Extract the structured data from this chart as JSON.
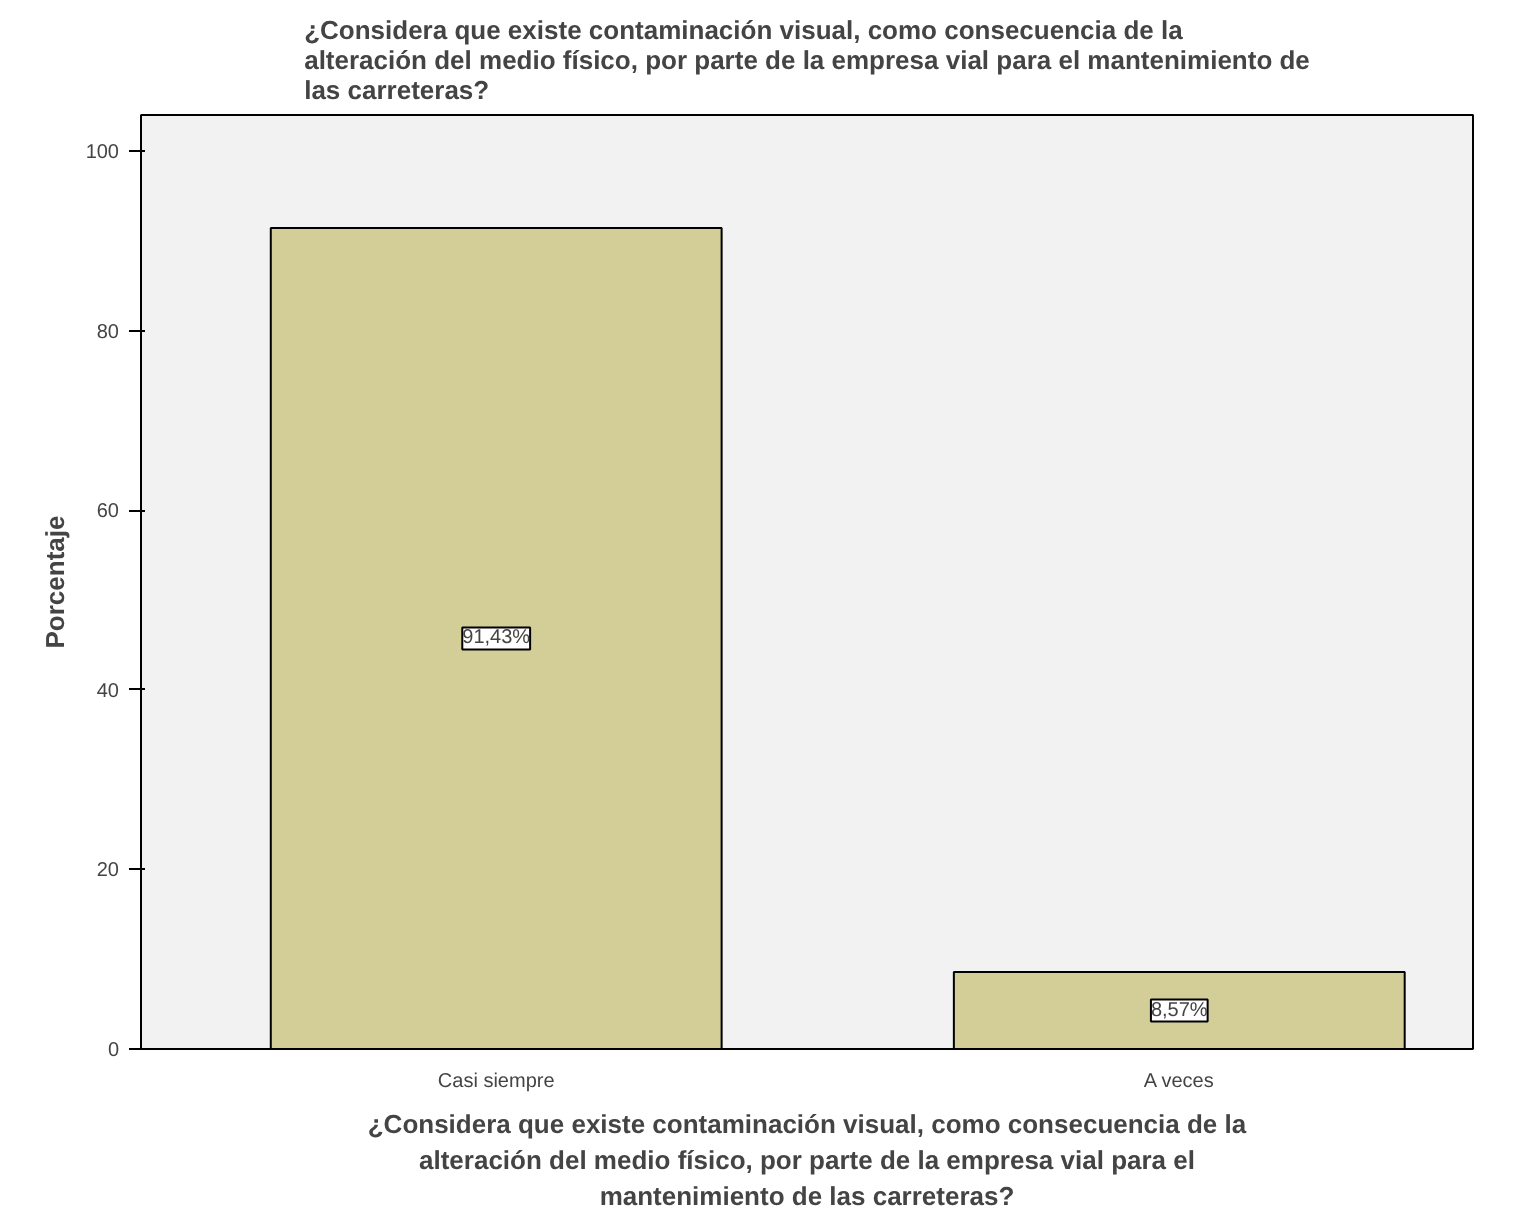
{
  "chart_data": {
    "type": "bar",
    "title": "¿Considera que existe contaminación visual, como consecuencia de la\nalteración del medio físico, por parte de la empresa vial para el mantenimiento de\nlas carreteras?",
    "xlabel": "¿Considera que existe contaminación visual, como consecuencia de la\nalteración del medio físico, por parte de la empresa vial para el\nmantenimiento de las carreteras?",
    "ylabel": "Porcentaje",
    "categories": [
      "Casi siempre",
      "A veces"
    ],
    "values": [
      91.43,
      8.57
    ],
    "value_labels": [
      "91,43%",
      "8,57%"
    ],
    "color": "#d3ce97",
    "ylim": [
      0,
      104
    ],
    "yticks": [
      0,
      20,
      40,
      60,
      80,
      100
    ],
    "grid": false
  }
}
